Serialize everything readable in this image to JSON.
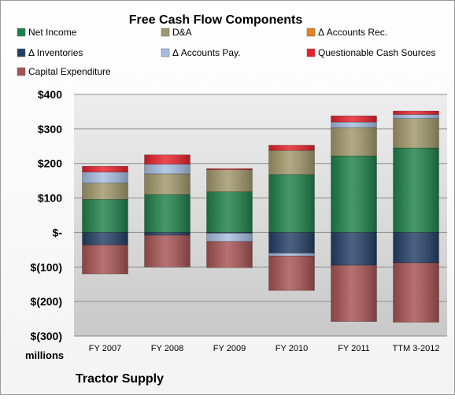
{
  "chart_data": {
    "type": "bar",
    "title": "Free Cash Flow Components",
    "unit_label": "millions",
    "company": "Tractor Supply",
    "categories": [
      "FY 2007",
      "FY 2008",
      "FY 2009",
      "FY 2010",
      "FY 2011",
      "TTM 3-2012"
    ],
    "y_ticks": [
      "$(300)",
      "$(200)",
      "$(100)",
      "$-",
      "$100",
      "$200",
      "$300",
      "$400"
    ],
    "ylim": [
      -300,
      400
    ],
    "grid": true,
    "stacked": true,
    "series": [
      {
        "name": "Net Income",
        "color": "#1e8049",
        "values": [
          96,
          110,
          118,
          168,
          222,
          245
        ]
      },
      {
        "name": "D&A",
        "color": "#a0976a",
        "values": [
          47,
          60,
          64,
          70,
          82,
          85
        ]
      },
      {
        "name": "Δ Accounts Rec.",
        "color": "#e6821e",
        "values": [
          0,
          0,
          0,
          0,
          0,
          0
        ]
      },
      {
        "name": "Δ Inventories",
        "color": "#243e64",
        "values": [
          -36,
          -8,
          -2,
          -60,
          -95,
          -88
        ]
      },
      {
        "name": "Δ Accounts Pay.",
        "color": "#a5bde0",
        "values": [
          32,
          28,
          -24,
          -8,
          16,
          12
        ]
      },
      {
        "name": "Questionable Cash Sources",
        "color": "#e8202a",
        "values": [
          17,
          27,
          3,
          15,
          18,
          10
        ]
      },
      {
        "name": "Capital Expenditure",
        "color": "#a65252",
        "values": [
          -84,
          -92,
          -76,
          -100,
          -163,
          -172
        ]
      }
    ]
  }
}
